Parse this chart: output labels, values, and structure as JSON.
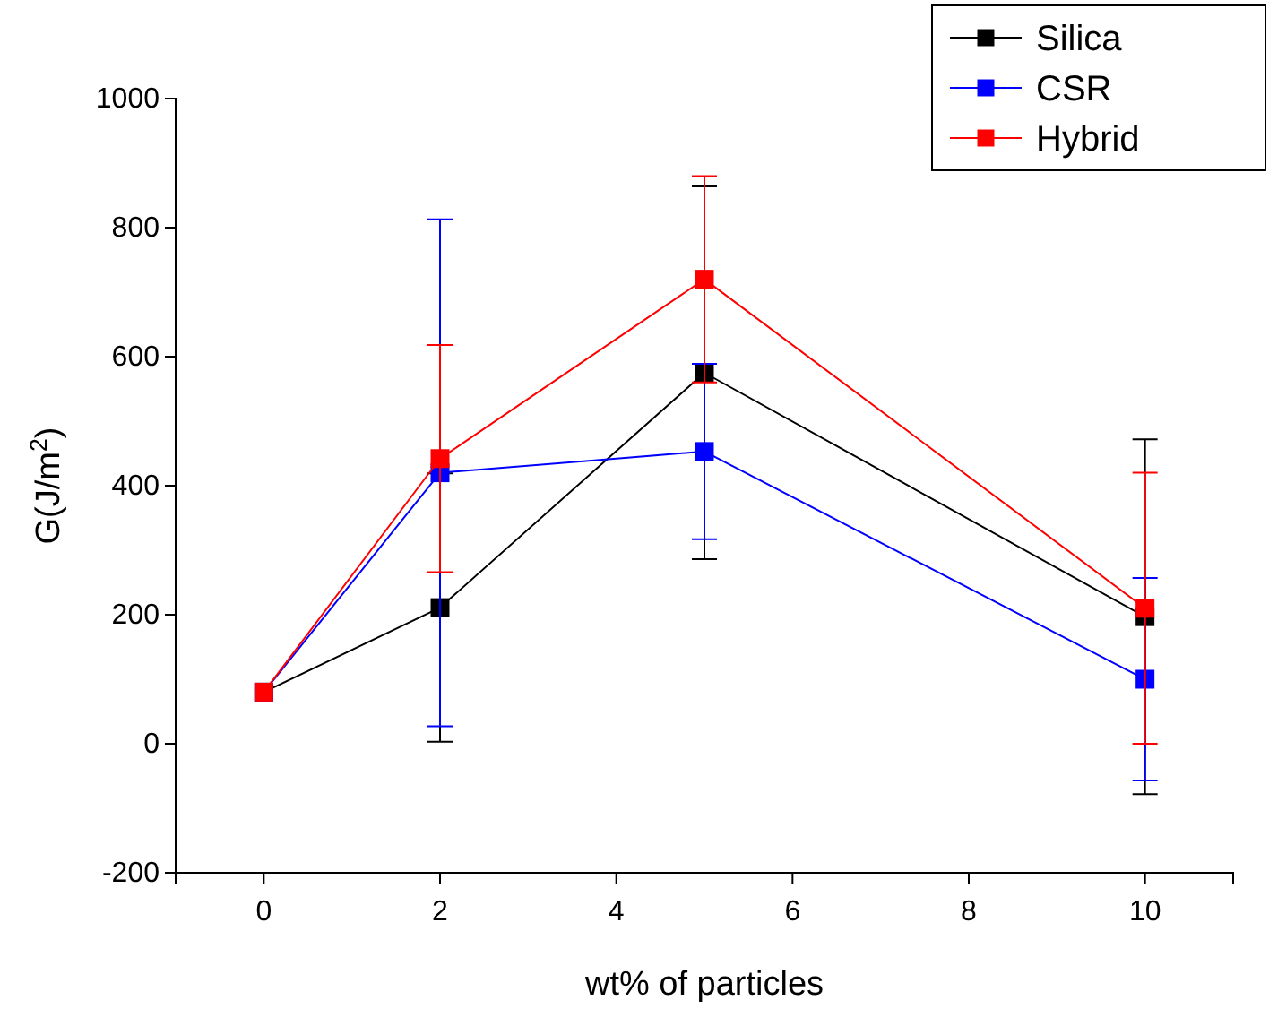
{
  "chart_data": {
    "type": "line",
    "xlabel": "wt% of particles",
    "ylabel": "G(J/m$^{2}$)",
    "x": [
      0,
      2,
      5,
      10
    ],
    "xlim": [
      -1,
      11
    ],
    "xticks": [
      0,
      2,
      4,
      6,
      8,
      10
    ],
    "ylim": [
      -200,
      1000
    ],
    "yticks": [
      -200,
      0,
      200,
      400,
      600,
      800,
      1000
    ],
    "marker": "square",
    "legend": "top right",
    "grid": false,
    "series": [
      {
        "name": "Silica",
        "color": "#000000",
        "values": [
          80,
          211,
          575,
          197
        ],
        "errors": [
          null,
          208,
          289,
          275
        ]
      },
      {
        "name": "CSR",
        "color": "#0000ff",
        "values": [
          80,
          420,
          453,
          100
        ],
        "errors": [
          null,
          393,
          136,
          157
        ]
      },
      {
        "name": "Hybrid",
        "color": "#ff0000",
        "values": [
          80,
          442,
          720,
          210
        ],
        "errors": [
          null,
          176,
          160,
          210
        ]
      }
    ]
  }
}
